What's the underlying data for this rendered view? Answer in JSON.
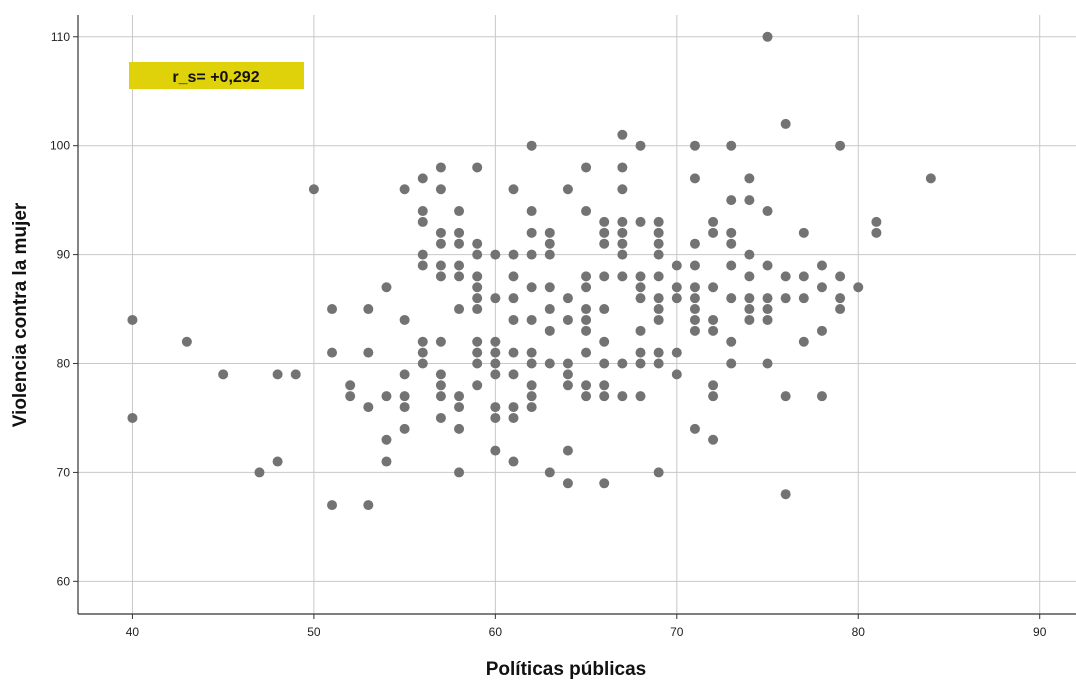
{
  "chart_data": {
    "type": "scatter",
    "xlabel": "Políticas públicas",
    "ylabel": "Violencia contra la mujer",
    "xlim": [
      37,
      92
    ],
    "ylim": [
      57,
      112
    ],
    "xticks": [
      40,
      50,
      60,
      70,
      80,
      90
    ],
    "yticks": [
      60,
      70,
      80,
      90,
      100,
      110
    ],
    "grid": true,
    "annotation": {
      "text": "r_s= +0,292",
      "position": "top-left",
      "background": "#e0d20a"
    },
    "colors": {
      "point": "#737373",
      "grid": "#c8c8c8",
      "axis": "#333333"
    },
    "points": [
      [
        40,
        84
      ],
      [
        40,
        75
      ],
      [
        43,
        82
      ],
      [
        45,
        79
      ],
      [
        47,
        70
      ],
      [
        48,
        79
      ],
      [
        48,
        71
      ],
      [
        49,
        79
      ],
      [
        50,
        96
      ],
      [
        51,
        85
      ],
      [
        51,
        81
      ],
      [
        51,
        67
      ],
      [
        52,
        78
      ],
      [
        52,
        77
      ],
      [
        53,
        85
      ],
      [
        53,
        81
      ],
      [
        53,
        76
      ],
      [
        53,
        67
      ],
      [
        54,
        87
      ],
      [
        54,
        77
      ],
      [
        54,
        73
      ],
      [
        54,
        71
      ],
      [
        55,
        96
      ],
      [
        55,
        84
      ],
      [
        55,
        79
      ],
      [
        55,
        77
      ],
      [
        55,
        76
      ],
      [
        55,
        74
      ],
      [
        56,
        97
      ],
      [
        56,
        94
      ],
      [
        56,
        93
      ],
      [
        56,
        90
      ],
      [
        56,
        89
      ],
      [
        56,
        82
      ],
      [
        56,
        81
      ],
      [
        56,
        80
      ],
      [
        57,
        98
      ],
      [
        57,
        96
      ],
      [
        57,
        92
      ],
      [
        57,
        91
      ],
      [
        57,
        89
      ],
      [
        57,
        88
      ],
      [
        57,
        82
      ],
      [
        57,
        79
      ],
      [
        57,
        78
      ],
      [
        57,
        77
      ],
      [
        57,
        75
      ],
      [
        58,
        94
      ],
      [
        58,
        92
      ],
      [
        58,
        91
      ],
      [
        58,
        89
      ],
      [
        58,
        88
      ],
      [
        58,
        85
      ],
      [
        58,
        77
      ],
      [
        58,
        76
      ],
      [
        58,
        74
      ],
      [
        58,
        70
      ],
      [
        59,
        98
      ],
      [
        59,
        91
      ],
      [
        59,
        90
      ],
      [
        59,
        88
      ],
      [
        59,
        87
      ],
      [
        59,
        86
      ],
      [
        59,
        85
      ],
      [
        59,
        82
      ],
      [
        59,
        81
      ],
      [
        59,
        80
      ],
      [
        59,
        78
      ],
      [
        60,
        90
      ],
      [
        60,
        86
      ],
      [
        60,
        82
      ],
      [
        60,
        81
      ],
      [
        60,
        80
      ],
      [
        60,
        79
      ],
      [
        60,
        76
      ],
      [
        60,
        75
      ],
      [
        60,
        72
      ],
      [
        61,
        96
      ],
      [
        61,
        90
      ],
      [
        61,
        88
      ],
      [
        61,
        86
      ],
      [
        61,
        84
      ],
      [
        61,
        81
      ],
      [
        61,
        79
      ],
      [
        61,
        76
      ],
      [
        61,
        75
      ],
      [
        61,
        71
      ],
      [
        62,
        100
      ],
      [
        62,
        94
      ],
      [
        62,
        92
      ],
      [
        62,
        90
      ],
      [
        62,
        87
      ],
      [
        62,
        84
      ],
      [
        62,
        81
      ],
      [
        62,
        80
      ],
      [
        62,
        78
      ],
      [
        62,
        77
      ],
      [
        62,
        76
      ],
      [
        63,
        92
      ],
      [
        63,
        91
      ],
      [
        63,
        90
      ],
      [
        63,
        87
      ],
      [
        63,
        85
      ],
      [
        63,
        83
      ],
      [
        63,
        80
      ],
      [
        63,
        70
      ],
      [
        64,
        96
      ],
      [
        64,
        86
      ],
      [
        64,
        84
      ],
      [
        64,
        80
      ],
      [
        64,
        79
      ],
      [
        64,
        78
      ],
      [
        64,
        72
      ],
      [
        64,
        69
      ],
      [
        65,
        98
      ],
      [
        65,
        94
      ],
      [
        65,
        88
      ],
      [
        65,
        87
      ],
      [
        65,
        85
      ],
      [
        65,
        84
      ],
      [
        65,
        83
      ],
      [
        65,
        81
      ],
      [
        65,
        78
      ],
      [
        65,
        77
      ],
      [
        66,
        93
      ],
      [
        66,
        92
      ],
      [
        66,
        91
      ],
      [
        66,
        88
      ],
      [
        66,
        85
      ],
      [
        66,
        82
      ],
      [
        66,
        80
      ],
      [
        66,
        78
      ],
      [
        66,
        77
      ],
      [
        66,
        69
      ],
      [
        67,
        101
      ],
      [
        67,
        98
      ],
      [
        67,
        96
      ],
      [
        67,
        93
      ],
      [
        67,
        92
      ],
      [
        67,
        91
      ],
      [
        67,
        90
      ],
      [
        67,
        88
      ],
      [
        67,
        80
      ],
      [
        67,
        77
      ],
      [
        68,
        100
      ],
      [
        68,
        93
      ],
      [
        68,
        88
      ],
      [
        68,
        87
      ],
      [
        68,
        86
      ],
      [
        68,
        83
      ],
      [
        68,
        81
      ],
      [
        68,
        80
      ],
      [
        68,
        77
      ],
      [
        69,
        93
      ],
      [
        69,
        92
      ],
      [
        69,
        91
      ],
      [
        69,
        90
      ],
      [
        69,
        88
      ],
      [
        69,
        86
      ],
      [
        69,
        85
      ],
      [
        69,
        84
      ],
      [
        69,
        81
      ],
      [
        69,
        80
      ],
      [
        69,
        70
      ],
      [
        70,
        89
      ],
      [
        70,
        87
      ],
      [
        70,
        86
      ],
      [
        70,
        81
      ],
      [
        70,
        79
      ],
      [
        71,
        100
      ],
      [
        71,
        97
      ],
      [
        71,
        91
      ],
      [
        71,
        89
      ],
      [
        71,
        87
      ],
      [
        71,
        86
      ],
      [
        71,
        85
      ],
      [
        71,
        84
      ],
      [
        71,
        83
      ],
      [
        71,
        74
      ],
      [
        72,
        93
      ],
      [
        72,
        92
      ],
      [
        72,
        87
      ],
      [
        72,
        84
      ],
      [
        72,
        83
      ],
      [
        72,
        78
      ],
      [
        72,
        77
      ],
      [
        72,
        73
      ],
      [
        73,
        100
      ],
      [
        73,
        95
      ],
      [
        73,
        92
      ],
      [
        73,
        91
      ],
      [
        73,
        89
      ],
      [
        73,
        86
      ],
      [
        73,
        82
      ],
      [
        73,
        80
      ],
      [
        74,
        97
      ],
      [
        74,
        95
      ],
      [
        74,
        90
      ],
      [
        74,
        88
      ],
      [
        74,
        86
      ],
      [
        74,
        85
      ],
      [
        74,
        84
      ],
      [
        75,
        110
      ],
      [
        75,
        94
      ],
      [
        75,
        89
      ],
      [
        75,
        86
      ],
      [
        75,
        85
      ],
      [
        75,
        84
      ],
      [
        75,
        80
      ],
      [
        76,
        102
      ],
      [
        76,
        88
      ],
      [
        76,
        86
      ],
      [
        76,
        77
      ],
      [
        76,
        68
      ],
      [
        77,
        92
      ],
      [
        77,
        88
      ],
      [
        77,
        86
      ],
      [
        77,
        82
      ],
      [
        78,
        89
      ],
      [
        78,
        87
      ],
      [
        78,
        83
      ],
      [
        78,
        77
      ],
      [
        79,
        100
      ],
      [
        79,
        88
      ],
      [
        79,
        86
      ],
      [
        79,
        85
      ],
      [
        80,
        87
      ],
      [
        81,
        93
      ],
      [
        81,
        92
      ],
      [
        84,
        97
      ]
    ]
  }
}
